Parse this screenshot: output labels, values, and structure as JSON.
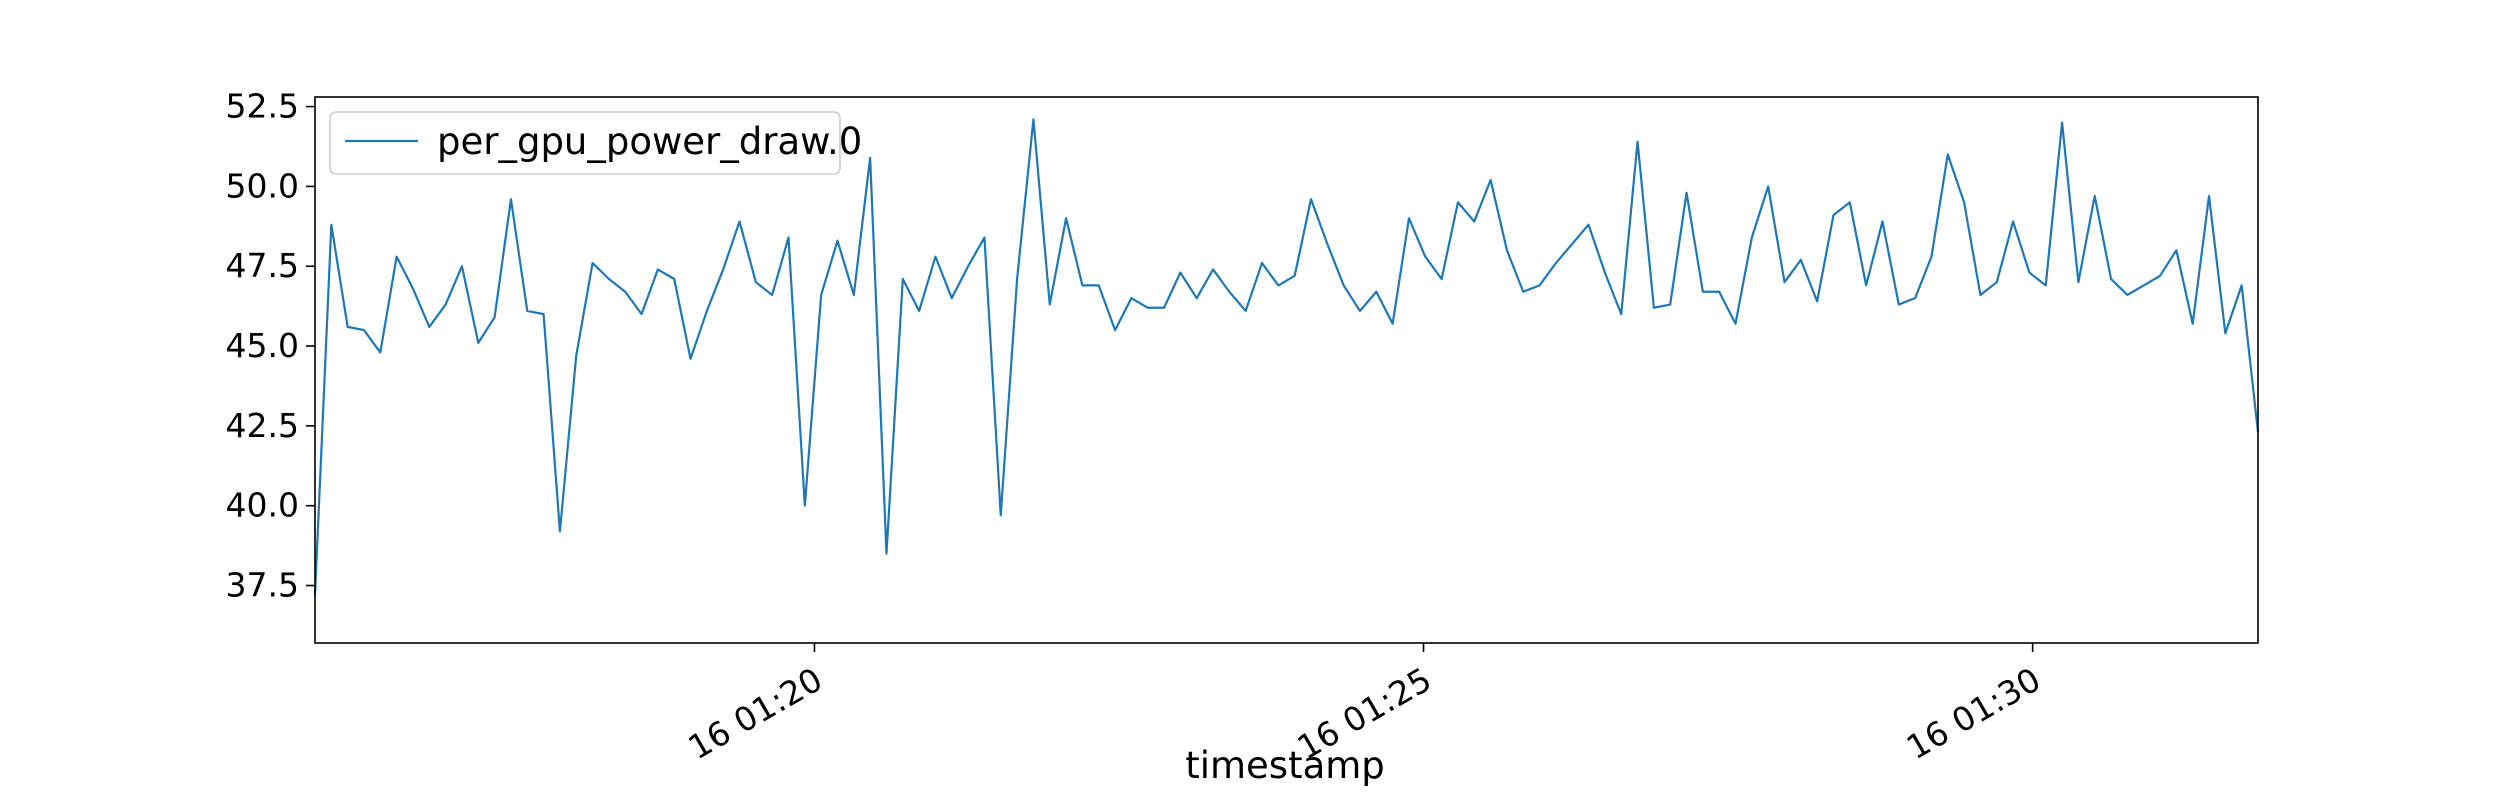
{
  "chart_data": {
    "type": "line",
    "title": "",
    "xlabel": "timestamp",
    "ylabel": "",
    "x_range": [
      "16 01:15:54",
      "16 01:31:51"
    ],
    "ylim": [
      35.7,
      52.8
    ],
    "x_ticks": [
      {
        "t": "16 01:20:00",
        "label": "16 01:20"
      },
      {
        "t": "16 01:25:00",
        "label": "16 01:25"
      },
      {
        "t": "16 01:30:00",
        "label": "16 01:30"
      }
    ],
    "y_ticks": [
      "37.5",
      "40.0",
      "42.5",
      "45.0",
      "47.5",
      "50.0",
      "52.5"
    ],
    "grid": false,
    "legend": {
      "position": "upper-left",
      "entries": [
        "per_gpu_power_draw.0"
      ]
    },
    "series": [
      {
        "name": "per_gpu_power_draw.0",
        "color": "#1f77b4",
        "x_start": "16 01:15:54",
        "x_end": "16 01:31:51",
        "values": [
          37.2,
          48.8,
          45.6,
          45.5,
          44.8,
          47.8,
          46.8,
          45.6,
          46.3,
          47.5,
          45.1,
          45.9,
          49.6,
          46.1,
          46.0,
          39.2,
          44.7,
          47.6,
          47.1,
          46.7,
          46.0,
          47.4,
          47.1,
          44.6,
          46.1,
          47.4,
          48.9,
          47.0,
          46.6,
          48.4,
          40.0,
          46.6,
          48.3,
          46.6,
          50.9,
          38.5,
          47.1,
          46.1,
          47.8,
          46.5,
          47.5,
          48.4,
          39.7,
          47.1,
          52.1,
          46.3,
          49.0,
          46.9,
          46.9,
          45.5,
          46.5,
          46.2,
          46.2,
          47.3,
          46.5,
          47.4,
          46.7,
          46.1,
          47.6,
          46.9,
          47.2,
          49.6,
          48.2,
          46.9,
          46.1,
          46.7,
          45.7,
          49.0,
          47.8,
          47.1,
          49.5,
          48.9,
          50.2,
          48.0,
          46.7,
          46.9,
          47.6,
          48.2,
          48.8,
          47.3,
          46.0,
          51.4,
          46.2,
          46.3,
          49.8,
          46.7,
          46.7,
          45.7,
          48.4,
          50.0,
          47.0,
          47.7,
          46.4,
          49.1,
          49.5,
          46.9,
          48.9,
          46.3,
          46.5,
          47.8,
          51.0,
          49.5,
          46.6,
          47.0,
          48.9,
          47.3,
          46.9,
          52.0,
          47.0,
          49.7,
          47.1,
          46.6,
          46.9,
          47.2,
          48.0,
          45.7,
          49.7,
          45.4,
          46.9,
          42.3
        ]
      }
    ]
  }
}
